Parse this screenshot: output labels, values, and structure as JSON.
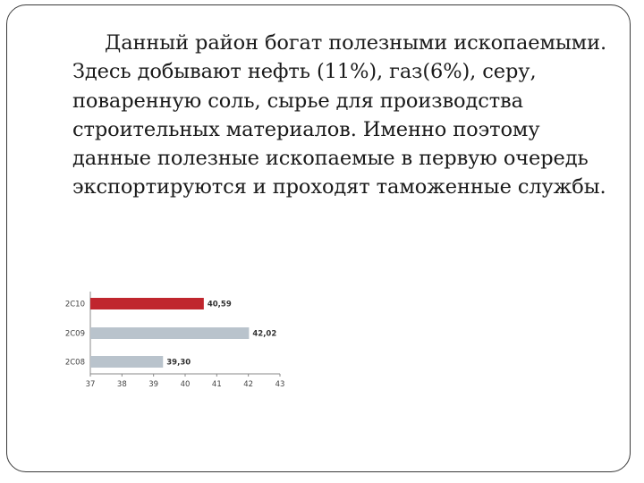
{
  "slide": {
    "paragraph": "Данный район богат полезными ископаемыми. Здесь добывают нефть (11%), газ(6%), серу, поваренную соль, сырье для производства строительных материалов. Именно поэтому данные полезные ископаемые в первую очередь экспортируются и проходят таможенные службы."
  },
  "chart_data": {
    "type": "bar",
    "orientation": "horizontal",
    "categories": [
      "2C10",
      "2C09",
      "2C08"
    ],
    "values": [
      40.59,
      42.02,
      39.3
    ],
    "value_labels": [
      "40,59",
      "42,02",
      "39,30"
    ],
    "xlim": [
      37,
      43
    ],
    "x_ticks": [
      "37",
      "38",
      "39",
      "40",
      "41",
      "42",
      "43"
    ],
    "colors": [
      "#c0262e",
      "#b9c3cc",
      "#b9c3cc"
    ],
    "grid": false,
    "legend": "none"
  }
}
